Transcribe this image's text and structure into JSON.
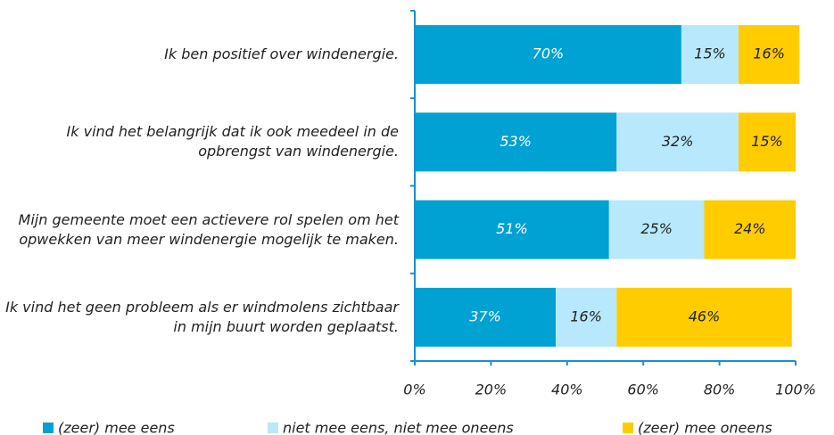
{
  "chart_data": {
    "type": "stacked_bar_horizontal",
    "categories": [
      "Ik ben positief over windenergie.",
      "Ik vind het belangrijk dat ik ook meedeel in de opbrengst van windenergie.",
      "Mijn gemeente moet een actievere rol spelen om het opwekken van meer windenergie mogelijk te maken.",
      "Ik vind het geen probleem als er windmolens zichtbaar in mijn buurt worden geplaatst."
    ],
    "series": [
      {
        "name": "(zeer) mee eens",
        "color": "#00a1d3",
        "values": [
          70,
          53,
          51,
          37
        ],
        "value_labels": [
          "70%",
          "53%",
          "51%",
          "37%"
        ]
      },
      {
        "name": "niet mee eens, niet mee oneens",
        "color": "#b7e8fb",
        "values": [
          15,
          32,
          25,
          16
        ],
        "value_labels": [
          "15%",
          "32%",
          "25%",
          "16%"
        ]
      },
      {
        "name": "(zeer) mee oneens",
        "color": "#ffcc00",
        "values": [
          16,
          15,
          24,
          46
        ],
        "value_labels": [
          "16%",
          "15%",
          "24%",
          "46%"
        ]
      }
    ],
    "xlim": [
      0,
      100
    ],
    "xticks": [
      {
        "value": 0,
        "label": "0%"
      },
      {
        "value": 20,
        "label": "20%"
      },
      {
        "value": 40,
        "label": "40%"
      },
      {
        "value": 60,
        "label": "60%"
      },
      {
        "value": 80,
        "label": "80%"
      },
      {
        "value": 100,
        "label": "100%"
      }
    ],
    "legend": "bottom"
  }
}
